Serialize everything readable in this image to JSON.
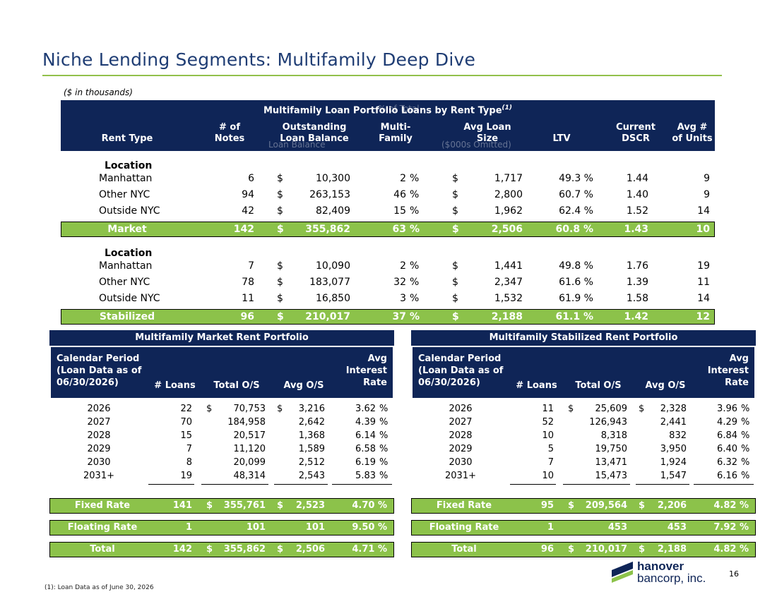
{
  "title": "Niche Lending Segments: Multifamily Deep Dive",
  "units_note": "($ in thousands)",
  "top_table": {
    "title": "Multifamily Loan Portfolio Loans by Rent Type",
    "title_sup": "(1)",
    "ghost_texts": [
      "% of Total",
      "Loan Balance",
      "($000s Omitted)"
    ],
    "headers": {
      "rent_type": "Rent Type",
      "notes": [
        "# of",
        "Notes"
      ],
      "balance": [
        "Outstanding",
        "Loan Balance"
      ],
      "multi": [
        "Multi-",
        "Family"
      ],
      "avg_loan": [
        "Avg Loan",
        "Size"
      ],
      "ltv": "LTV",
      "dscr": [
        "Current",
        "DSCR"
      ],
      "units": [
        "Avg #",
        "of Units"
      ]
    },
    "groups": [
      {
        "label": "Location",
        "rows": [
          {
            "name": "Manhattan",
            "notes": "6",
            "balance": "10,300",
            "pct": "2",
            "avg": "1,717",
            "ltv": "49.3 %",
            "dscr": "1.44",
            "units": "9"
          },
          {
            "name": "Other NYC",
            "notes": "94",
            "balance": "263,153",
            "pct": "46",
            "avg": "2,800",
            "ltv": "60.7 %",
            "dscr": "1.40",
            "units": "9"
          },
          {
            "name": "Outside NYC",
            "notes": "42",
            "balance": "82,409",
            "pct": "15",
            "avg": "1,962",
            "ltv": "62.4 %",
            "dscr": "1.52",
            "units": "14"
          }
        ],
        "total": {
          "name": "Market",
          "notes": "142",
          "balance": "355,862",
          "pct": "63",
          "avg": "2,506",
          "ltv": "60.8 %",
          "dscr": "1.43",
          "units": "10"
        }
      },
      {
        "label": "Location",
        "rows": [
          {
            "name": "Manhattan",
            "notes": "7",
            "balance": "10,090",
            "pct": "2",
            "avg": "1,441",
            "ltv": "49.8 %",
            "dscr": "1.76",
            "units": "19"
          },
          {
            "name": "Other NYC",
            "notes": "78",
            "balance": "183,077",
            "pct": "32",
            "avg": "2,347",
            "ltv": "61.6 %",
            "dscr": "1.39",
            "units": "11"
          },
          {
            "name": "Outside NYC",
            "notes": "11",
            "balance": "16,850",
            "pct": "3",
            "avg": "1,532",
            "ltv": "61.9 %",
            "dscr": "1.58",
            "units": "14"
          }
        ],
        "total": {
          "name": "Stabilized",
          "notes": "96",
          "balance": "210,017",
          "pct": "37",
          "avg": "2,188",
          "ltv": "61.1 %",
          "dscr": "1.42",
          "units": "12"
        }
      }
    ]
  },
  "panels": [
    {
      "title": "Multifamily Market Rent Portfolio",
      "headers": {
        "period": [
          "Calendar Period",
          "(Loan Data as of",
          "06/30/2026)"
        ],
        "loans": "# Loans",
        "total": "Total O/S",
        "avg": "Avg O/S",
        "rate": [
          "Avg",
          "Interest",
          "Rate"
        ]
      },
      "rows": [
        {
          "year": "2026",
          "loans": "22",
          "total": "70,753",
          "avg": "3,216",
          "rate": "3.62",
          "dollar": true
        },
        {
          "year": "2027",
          "loans": "70",
          "total": "184,958",
          "avg": "2,642",
          "rate": "4.39"
        },
        {
          "year": "2028",
          "loans": "15",
          "total": "20,517",
          "avg": "1,368",
          "rate": "6.14"
        },
        {
          "year": "2029",
          "loans": "7",
          "total": "11,120",
          "avg": "1,589",
          "rate": "6.58"
        },
        {
          "year": "2030",
          "loans": "8",
          "total": "20,099",
          "avg": "2,512",
          "rate": "6.19"
        },
        {
          "year": "2031+",
          "loans": "19",
          "total": "48,314",
          "avg": "2,543",
          "rate": "5.83"
        }
      ],
      "summary": [
        {
          "label": "Fixed Rate",
          "loans": "141",
          "total": "355,761",
          "avg": "2,523",
          "rate": "4.70 %",
          "dollar": true
        },
        {
          "label": "Floating Rate",
          "loans": "1",
          "total": "101",
          "avg": "101",
          "rate": "9.50 %",
          "dollar": false
        },
        {
          "label": "Total",
          "loans": "142",
          "total": "355,862",
          "avg": "2,506",
          "rate": "4.71 %",
          "dollar": true
        }
      ]
    },
    {
      "title": "Multifamily Stabilized Rent Portfolio",
      "headers": {
        "period": [
          "Calendar Period",
          "(Loan Data as of",
          "06/30/2026)"
        ],
        "loans": "# Loans",
        "total": "Total O/S",
        "avg": "Avg O/S",
        "rate": [
          "Avg",
          "Interest",
          "Rate"
        ]
      },
      "rows": [
        {
          "year": "2026",
          "loans": "11",
          "total": "25,609",
          "avg": "2,328",
          "rate": "3.96",
          "dollar": true
        },
        {
          "year": "2027",
          "loans": "52",
          "total": "126,943",
          "avg": "2,441",
          "rate": "4.29"
        },
        {
          "year": "2028",
          "loans": "10",
          "total": "8,318",
          "avg": "832",
          "rate": "6.84"
        },
        {
          "year": "2029",
          "loans": "5",
          "total": "19,750",
          "avg": "3,950",
          "rate": "6.40"
        },
        {
          "year": "2030",
          "loans": "7",
          "total": "13,471",
          "avg": "1,924",
          "rate": "6.32"
        },
        {
          "year": "2031+",
          "loans": "10",
          "total": "15,473",
          "avg": "1,547",
          "rate": "6.16"
        }
      ],
      "summary": [
        {
          "label": "Fixed Rate",
          "loans": "95",
          "total": "209,564",
          "avg": "2,206",
          "rate": "4.82 %",
          "dollar": true
        },
        {
          "label": "Floating Rate",
          "loans": "1",
          "total": "453",
          "avg": "453",
          "rate": "7.92 %",
          "dollar": false
        },
        {
          "label": "Total",
          "loans": "96",
          "total": "210,017",
          "avg": "2,188",
          "rate": "4.82 %",
          "dollar": true
        }
      ]
    }
  ],
  "symbols": {
    "dollar": "$",
    "pct": "%"
  },
  "footnote": "(1): Loan Data as of June 30, 2026",
  "page_number": "16",
  "logo": {
    "line1": "hanover",
    "line2": "bancorp, inc.",
    "color_navy": "#0f2557",
    "color_green": "#8cc24a"
  }
}
